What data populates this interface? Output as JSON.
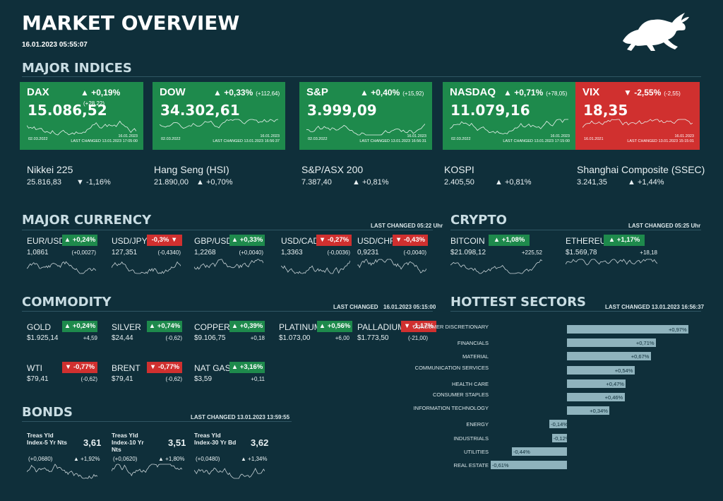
{
  "header": {
    "title": "MARKET OVERVIEW",
    "timestamp": "16.01.2023 05:55:07"
  },
  "major_indices": {
    "title": "MAJOR INDICES",
    "cards": [
      {
        "name": "DAX",
        "pct": "▲ +0,19%",
        "chg": "(+28,22)",
        "value": "15.086,52",
        "date_start": "02.03.2022",
        "date_end": "16.01.2023",
        "last_changed": "LAST CHANGED 13.01.2023 17:05:00",
        "color": "#1e8a4c"
      },
      {
        "name": "DOW",
        "pct": "▲ +0,33%",
        "chg": "(+112,64)",
        "value": "34.302,61",
        "date_start": "02.03.2022",
        "date_end": "16.01.2023",
        "last_changed": "LAST CHANGED 13.01.2023 16:56:37",
        "color": "#1e8a4c"
      },
      {
        "name": "S&P",
        "pct": "▲ +0,40%",
        "chg": "(+15,92)",
        "value": "3.999,09",
        "date_start": "02.03.2022",
        "date_end": "16.01.2023",
        "last_changed": "LAST CHANGED 13.01.2023 16:56:31",
        "color": "#1e8a4c"
      },
      {
        "name": "NASDAQ",
        "pct": "▲ +0,71%",
        "chg": "(+78,05)",
        "value": "11.079,16",
        "date_start": "02.03.2022",
        "date_end": "16.01.2023",
        "last_changed": "LAST CHANGED 13.01.2023 17:15:00",
        "color": "#1e8a4c"
      },
      {
        "name": "VIX",
        "pct": "▼ -2,55%",
        "chg": "(-2,55)",
        "value": "18,35",
        "date_start": "16.01.2021",
        "date_end": "16.01.2023",
        "last_changed": "LAST CHANGED 13.01.2023 15:15:01",
        "color": "#d0302f"
      }
    ],
    "others": [
      {
        "name": "Nikkei 225",
        "value": "25.816,83",
        "pct": "▼ -1,16%"
      },
      {
        "name": "Hang Seng (HSI)",
        "value": "21.890,00",
        "pct": "▲ +0,70%"
      },
      {
        "name": "S&P/ASX 200",
        "value": "7.387,40",
        "pct": "▲ +0,81%"
      },
      {
        "name": "KOSPI",
        "value": "2.405,50",
        "pct": "▲ +0,81%"
      },
      {
        "name": "Shanghai Composite (SSEC)",
        "value": "3.241,35",
        "pct": "▲ +1,44%"
      }
    ]
  },
  "currency": {
    "title": "MAJOR CURRENCY",
    "last_changed": "LAST CHANGED 05:22 Uhr",
    "items": [
      {
        "name": "EUR/USD",
        "badge": "▲ +0,24%",
        "value": "1,0861",
        "chg": "(+0,0027)",
        "up": true
      },
      {
        "name": "USD/JPY",
        "badge": "-0,3% ▼",
        "value": "127,351",
        "chg": "(-0,4340)",
        "up": false
      },
      {
        "name": "GBP/USD",
        "badge": "▲ +0,33%",
        "value": "1,2268",
        "chg": "(+0,0040)",
        "up": true
      },
      {
        "name": "USD/CAD",
        "badge": "▼ -0,27%",
        "value": "1,3363",
        "chg": "(-0,0036)",
        "up": false
      },
      {
        "name": "USD/CHF",
        "badge": "▼ -0,43%",
        "value": "0,9231",
        "chg": "(-0,0040)",
        "up": false
      }
    ]
  },
  "crypto": {
    "title": "CRYPTO",
    "last_changed": "LAST CHANGED 05:25 Uhr",
    "items": [
      {
        "name": "BITCOIN",
        "badge": "▲ +1,08%",
        "value": "$21.098,12",
        "chg": "+225,52"
      },
      {
        "name": "ETHEREUM",
        "badge": "▲ +1,17%",
        "value": "$1.569,78",
        "chg": "+18,18"
      }
    ]
  },
  "commodity": {
    "title": "COMMODITY",
    "last_changed_label": "LAST CHANGED",
    "last_changed_time": "16.01.2023 05:15:00",
    "items": [
      {
        "name": "GOLD",
        "badge": "▲ +0,24%",
        "value": "$1.925,14",
        "chg": "+4,59",
        "up": true
      },
      {
        "name": "SILVER",
        "badge": "▲ +0,74%",
        "value": "$24,44",
        "chg": "(-0,62)",
        "up": true
      },
      {
        "name": "COPPER",
        "badge": "▲ +0,39%",
        "value": "$9.106,75",
        "chg": "+0,18",
        "up": true
      },
      {
        "name": "PLATINUM",
        "badge": "▲ +0,56%",
        "value": "$1.073,00",
        "chg": "+6,00",
        "up": true
      },
      {
        "name": "PALLADIUM",
        "badge": "▼ -1,17%",
        "value": "$1.773,50",
        "chg": "(-21,00)",
        "up": false
      },
      {
        "name": "WTI",
        "badge": "▼ -0,77%",
        "value": "$79,41",
        "chg": "(-0,62)",
        "up": false
      },
      {
        "name": "BRENT",
        "badge": "▼ -0,77%",
        "value": "$79,41",
        "chg": "(-0,62)",
        "up": false
      },
      {
        "name": "NAT GAS",
        "badge": "▲ +3,16%",
        "value": "$3,59",
        "chg": "+0,11",
        "up": true
      }
    ]
  },
  "bonds": {
    "title": "BONDS",
    "last_changed": "LAST CHANGED 13.01.2023 13:59:55",
    "items": [
      {
        "name": "Treas Yld Index-5 Yr Nts",
        "value": "3,61",
        "chg": "(+0,0680)",
        "pct": "▲ +1,92%"
      },
      {
        "name": "Treas Yld Index-10 Yr Nts",
        "value": "3,51",
        "chg": "(+0,0620)",
        "pct": "▲ +1,80%"
      },
      {
        "name": "Treas Yld Index-30 Yr Bd",
        "value": "3,62",
        "chg": "(+0,0480)",
        "pct": "▲ +1,34%"
      }
    ]
  },
  "sectors": {
    "title": "HOTTEST SECTORS",
    "last_changed": "LAST CHANGED 13.01.2023 16:56:37",
    "items": [
      {
        "name": "CONSUMER DISCRETIONARY",
        "label": "+0,97%",
        "value": 0.97
      },
      {
        "name": "FINANCIALS",
        "label": "+0,71%",
        "value": 0.71
      },
      {
        "name": "MATERIAL",
        "label": "+0,67%",
        "value": 0.67
      },
      {
        "name": "COMMUNICATION SERVICES",
        "label": "+0,54%",
        "value": 0.54
      },
      {
        "name": "HEALTH CARE",
        "label": "+0,47%",
        "value": 0.47
      },
      {
        "name": "CONSUMER STAPLES",
        "label": "+0,46%",
        "value": 0.46
      },
      {
        "name": "INFORMATION TECHNOLOGY",
        "label": "+0,34%",
        "value": 0.34
      },
      {
        "name": "ENERGY",
        "label": "-0,14%",
        "value": -0.14
      },
      {
        "name": "INDUSTRIALS",
        "label": "-0,12%",
        "value": -0.12
      },
      {
        "name": "UTILITIES",
        "label": "-0,44%",
        "value": -0.44
      },
      {
        "name": "REAL ESTATE",
        "label": "-0,61%",
        "value": -0.61
      }
    ]
  },
  "logo": {
    "icon": "bull-icon"
  }
}
